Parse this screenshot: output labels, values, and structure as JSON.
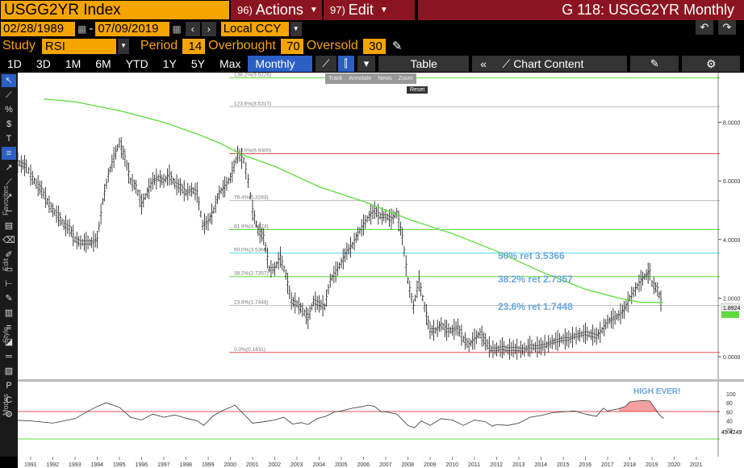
{
  "header": {
    "ticker": "USGG2YR Index",
    "actions_num": "96)",
    "actions_label": "Actions",
    "edit_num": "97)",
    "edit_label": "Edit",
    "title": "G 118: USGG2YR Monthly"
  },
  "range": {
    "start": "02/28/1989",
    "end": "07/09/2019",
    "currency": "Local CCY"
  },
  "study": {
    "label": "Study",
    "value": "RSI",
    "period_label": "Period",
    "period": "14",
    "overbought_label": "Overbought",
    "overbought": "70",
    "oversold_label": "Oversold",
    "oversold": "30"
  },
  "toolbar": {
    "tabs": [
      "1D",
      "3D",
      "1M",
      "6M",
      "YTD",
      "1Y",
      "5Y",
      "Max"
    ],
    "frequency": "Monthly",
    "table_label": "Table",
    "chart_content_label": "Chart Content"
  },
  "floating_toolbar": {
    "items": [
      "Track",
      "Annotate",
      "News",
      "Zoom"
    ],
    "reset": "Reset"
  },
  "left_labels": {
    "favorites": "Favorites",
    "edit": "Edit",
    "style": "Style",
    "modes": "Modes"
  },
  "chart_data": {
    "type": "line",
    "x_ticks": [
      "1991",
      "1992",
      "1993",
      "1994",
      "1995",
      "1996",
      "1997",
      "1998",
      "1999",
      "2000",
      "2001",
      "2002",
      "2003",
      "2004",
      "2005",
      "2006",
      "2007",
      "2008",
      "2009",
      "2010",
      "2011",
      "2012",
      "2013",
      "2014",
      "2015",
      "2016",
      "2017",
      "2018",
      "2019",
      "2020",
      "2021"
    ],
    "y_ticks": [
      "8.0000",
      "6.0000",
      "4.0000",
      "2.0000",
      "0.0000"
    ],
    "last_price": "1.8924",
    "ma_value": "1.8xxx",
    "fib_levels": [
      {
        "label": "138.2%(9.5226)",
        "value": 9.5226
      },
      {
        "label": "123.6%(8.5317)",
        "value": 8.5317
      },
      {
        "label": "100.0%(6.9300)",
        "value": 6.93
      },
      {
        "label": "76.4%(5.3283)",
        "value": 5.3283
      },
      {
        "label": "61.8%(4.3374)",
        "value": 4.3374
      },
      {
        "label": "50.0%(3.5366)",
        "value": 3.5366
      },
      {
        "label": "38.2%(2.7357)",
        "value": 2.7357
      },
      {
        "label": "23.6%(1.7448)",
        "value": 1.7448
      },
      {
        "label": "0.0%(0.1431)",
        "value": 0.1431
      }
    ],
    "annotations": [
      "50% ret 3.5366",
      "38.2% ret 2.7357",
      "23.6% ret 1.7448"
    ],
    "rsi": {
      "y_ticks": [
        "100",
        "80",
        "60",
        "40",
        "20"
      ],
      "last_value": "45.4249",
      "annotation": "HIGH EVER!"
    },
    "series": [
      {
        "values": [
          [
            1989.17,
            7.1
          ],
          [
            1989.5,
            6.9
          ],
          [
            1989.8,
            6.9
          ],
          [
            1990,
            6.8
          ],
          [
            1990.25,
            6.7
          ],
          [
            1990.5,
            6.6
          ],
          [
            1990.8,
            6.5
          ],
          [
            1991,
            6.2
          ],
          [
            1991.25,
            5.9
          ],
          [
            1991.5,
            5.7
          ],
          [
            1991.75,
            5.3
          ],
          [
            1992,
            5.0
          ],
          [
            1992.25,
            4.8
          ],
          [
            1992.5,
            4.5
          ],
          [
            1992.75,
            4.4
          ],
          [
            1993,
            4.0
          ],
          [
            1993.25,
            3.9
          ],
          [
            1993.5,
            3.9
          ],
          [
            1993.75,
            3.9
          ],
          [
            1994,
            4.0
          ],
          [
            1994.25,
            5.3
          ],
          [
            1994.5,
            6.2
          ],
          [
            1994.75,
            6.8
          ],
          [
            1995,
            7.3
          ],
          [
            1995.25,
            6.8
          ],
          [
            1995.5,
            6.0
          ],
          [
            1995.75,
            5.8
          ],
          [
            1996,
            5.2
          ],
          [
            1996.25,
            5.6
          ],
          [
            1996.5,
            6.0
          ],
          [
            1996.75,
            6.1
          ],
          [
            1997,
            6.0
          ],
          [
            1997.25,
            6.2
          ],
          [
            1997.5,
            5.9
          ],
          [
            1997.75,
            5.8
          ],
          [
            1998,
            5.6
          ],
          [
            1998.25,
            5.7
          ],
          [
            1998.5,
            5.6
          ],
          [
            1998.75,
            4.5
          ],
          [
            1999,
            4.6
          ],
          [
            1999.25,
            5.0
          ],
          [
            1999.5,
            5.6
          ],
          [
            1999.75,
            5.8
          ],
          [
            2000,
            6.1
          ],
          [
            2000.33,
            6.9
          ],
          [
            2000.6,
            6.7
          ],
          [
            2000.8,
            6.0
          ],
          [
            2001,
            5.0
          ],
          [
            2001.25,
            4.3
          ],
          [
            2001.5,
            4.1
          ],
          [
            2001.75,
            3.0
          ],
          [
            2002,
            3.0
          ],
          [
            2002.25,
            3.4
          ],
          [
            2002.5,
            2.8
          ],
          [
            2002.75,
            1.9
          ],
          [
            2003,
            1.8
          ],
          [
            2003.25,
            1.6
          ],
          [
            2003.5,
            1.3
          ],
          [
            2003.75,
            1.9
          ],
          [
            2004,
            1.8
          ],
          [
            2004.25,
            1.7
          ],
          [
            2004.5,
            2.6
          ],
          [
            2004.75,
            2.9
          ],
          [
            2005,
            3.2
          ],
          [
            2005.25,
            3.6
          ],
          [
            2005.5,
            3.8
          ],
          [
            2005.75,
            4.2
          ],
          [
            2006,
            4.5
          ],
          [
            2006.25,
            4.8
          ],
          [
            2006.5,
            5.0
          ],
          [
            2006.75,
            4.8
          ],
          [
            2007,
            4.8
          ],
          [
            2007.25,
            4.7
          ],
          [
            2007.5,
            4.9
          ],
          [
            2007.75,
            4.1
          ],
          [
            2008,
            2.6
          ],
          [
            2008.25,
            1.7
          ],
          [
            2008.5,
            2.6
          ],
          [
            2008.75,
            1.7
          ],
          [
            2009,
            0.9
          ],
          [
            2009.25,
            0.9
          ],
          [
            2009.5,
            1.1
          ],
          [
            2009.75,
            0.9
          ],
          [
            2010,
            0.9
          ],
          [
            2010.25,
            1.0
          ],
          [
            2010.5,
            0.6
          ],
          [
            2010.75,
            0.4
          ],
          [
            2011,
            0.6
          ],
          [
            2011.25,
            0.8
          ],
          [
            2011.5,
            0.5
          ],
          [
            2011.75,
            0.25
          ],
          [
            2012,
            0.25
          ],
          [
            2012.25,
            0.3
          ],
          [
            2012.5,
            0.25
          ],
          [
            2012.75,
            0.27
          ],
          [
            2013,
            0.25
          ],
          [
            2013.25,
            0.24
          ],
          [
            2013.5,
            0.35
          ],
          [
            2013.75,
            0.32
          ],
          [
            2014,
            0.35
          ],
          [
            2014.25,
            0.4
          ],
          [
            2014.5,
            0.5
          ],
          [
            2014.75,
            0.55
          ],
          [
            2015,
            0.6
          ],
          [
            2015.25,
            0.6
          ],
          [
            2015.5,
            0.7
          ],
          [
            2015.75,
            0.75
          ],
          [
            2016,
            0.8
          ],
          [
            2016.25,
            0.75
          ],
          [
            2016.5,
            0.7
          ],
          [
            2016.75,
            0.9
          ],
          [
            2017,
            1.2
          ],
          [
            2017.25,
            1.3
          ],
          [
            2017.5,
            1.4
          ],
          [
            2017.75,
            1.6
          ],
          [
            2018,
            2.0
          ],
          [
            2018.25,
            2.3
          ],
          [
            2018.5,
            2.6
          ],
          [
            2018.75,
            2.8
          ],
          [
            2018.9,
            2.9
          ],
          [
            2019.0,
            2.5
          ],
          [
            2019.25,
            2.3
          ],
          [
            2019.4,
            1.9
          ],
          [
            2019.52,
            1.89
          ]
        ]
      },
      {
        "values": [
          [
            1991.6,
            8.8
          ],
          [
            1993,
            8.7
          ],
          [
            1995,
            8.4
          ],
          [
            1997,
            8.0
          ],
          [
            1998.5,
            7.6
          ],
          [
            1999.5,
            7.3
          ],
          [
            2000.5,
            6.9
          ],
          [
            2002,
            6.5
          ],
          [
            2004,
            5.8
          ],
          [
            2006,
            5.3
          ],
          [
            2008,
            4.7
          ],
          [
            2010,
            4.2
          ],
          [
            2012,
            3.6
          ],
          [
            2014,
            2.9
          ],
          [
            2016,
            2.3
          ],
          [
            2017.5,
            2.0
          ],
          [
            2018.5,
            1.85
          ],
          [
            2019.5,
            1.85
          ]
        ]
      },
      {
        "values": [
          [
            1989.2,
            45
          ],
          [
            1990,
            42
          ],
          [
            1991,
            40
          ],
          [
            1992,
            35
          ],
          [
            1993,
            45
          ],
          [
            1993.6,
            62
          ],
          [
            1994,
            72
          ],
          [
            1994.4,
            80
          ],
          [
            1995,
            70
          ],
          [
            1995.5,
            48
          ],
          [
            1996,
            42
          ],
          [
            1996.5,
            55
          ],
          [
            1997,
            48
          ],
          [
            1997.5,
            53
          ],
          [
            1998,
            46
          ],
          [
            1998.5,
            40
          ],
          [
            1998.8,
            30
          ],
          [
            1999.2,
            50
          ],
          [
            1999.6,
            62
          ],
          [
            2000,
            70
          ],
          [
            2000.2,
            75
          ],
          [
            2000.5,
            60
          ],
          [
            2001,
            35
          ],
          [
            2001.5,
            38
          ],
          [
            2002,
            42
          ],
          [
            2002.4,
            48
          ],
          [
            2002.8,
            33
          ],
          [
            2003.2,
            36
          ],
          [
            2003.5,
            32
          ],
          [
            2003.9,
            45
          ],
          [
            2004.3,
            50
          ],
          [
            2004.7,
            60
          ],
          [
            2005,
            62
          ],
          [
            2005.5,
            68
          ],
          [
            2006,
            72
          ],
          [
            2006.2,
            75
          ],
          [
            2006.5,
            72
          ],
          [
            2006.8,
            60
          ],
          [
            2007,
            60
          ],
          [
            2007.5,
            55
          ],
          [
            2007.8,
            40
          ],
          [
            2008,
            30
          ],
          [
            2008.3,
            25
          ],
          [
            2008.6,
            40
          ],
          [
            2009,
            30
          ],
          [
            2009.5,
            45
          ],
          [
            2010,
            42
          ],
          [
            2010.5,
            30
          ],
          [
            2011,
            42
          ],
          [
            2011.5,
            38
          ],
          [
            2011.8,
            28
          ],
          [
            2012,
            32
          ],
          [
            2012.5,
            30
          ],
          [
            2013,
            35
          ],
          [
            2013.5,
            48
          ],
          [
            2014,
            52
          ],
          [
            2014.5,
            58
          ],
          [
            2015,
            60
          ],
          [
            2015.5,
            62
          ],
          [
            2016,
            55
          ],
          [
            2016.5,
            50
          ],
          [
            2016.8,
            68
          ],
          [
            2017,
            62
          ],
          [
            2017.5,
            67
          ],
          [
            2017.8,
            72
          ],
          [
            2018,
            82
          ],
          [
            2018.3,
            84
          ],
          [
            2018.6,
            85
          ],
          [
            2018.9,
            84
          ],
          [
            2019.1,
            70
          ],
          [
            2019.3,
            55
          ],
          [
            2019.52,
            45
          ]
        ]
      }
    ]
  }
}
